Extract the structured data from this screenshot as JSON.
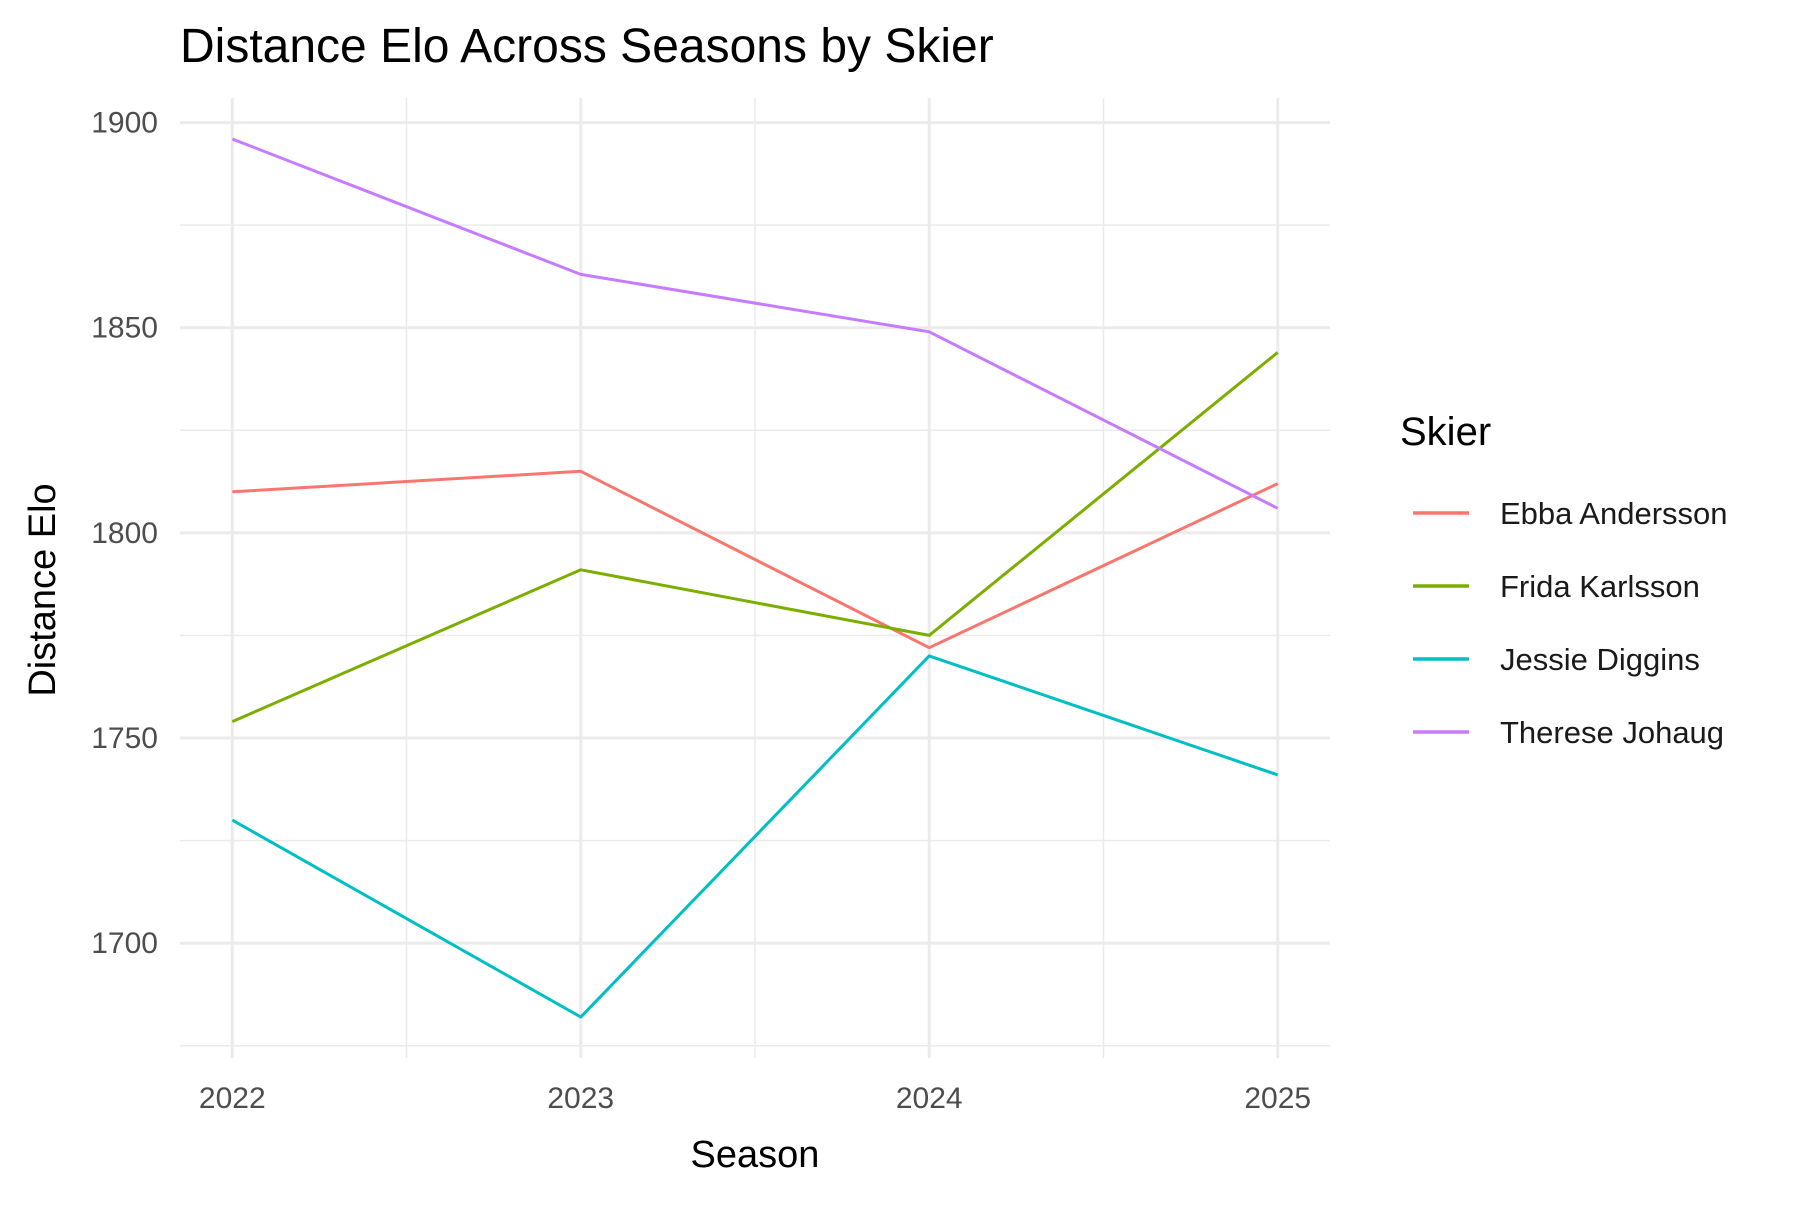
{
  "chart_data": {
    "type": "line",
    "title": "Distance Elo Across Seasons by Skier",
    "xlabel": "Season",
    "ylabel": "Distance Elo",
    "x": [
      2022,
      2023,
      2024,
      2025
    ],
    "xlim": [
      2021.85,
      2025.15
    ],
    "ylim": [
      1672,
      1906
    ],
    "y_ticks": [
      1700,
      1750,
      1800,
      1850,
      1900
    ],
    "x_ticks": [
      2022,
      2023,
      2024,
      2025
    ],
    "grid": true,
    "legend": {
      "title": "Skier",
      "position": "right"
    },
    "series": [
      {
        "name": "Ebba Andersson",
        "color": "#F8766D",
        "values": [
          1810,
          1815,
          1772,
          1812
        ]
      },
      {
        "name": "Frida Karlsson",
        "color": "#7CAE00",
        "values": [
          1754,
          1791,
          1775,
          1844
        ]
      },
      {
        "name": "Jessie Diggins",
        "color": "#00BFC4",
        "values": [
          1730,
          1682,
          1770,
          1741
        ]
      },
      {
        "name": "Therese Johaug",
        "color": "#C77CFF",
        "values": [
          1896,
          1863,
          1849,
          1806
        ]
      }
    ]
  }
}
